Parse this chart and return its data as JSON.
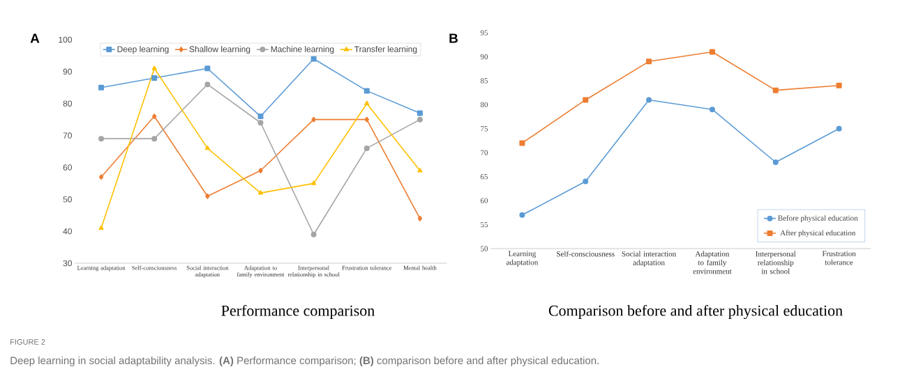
{
  "chart_data": [
    {
      "type": "line",
      "title": "Performance comparison",
      "categories": [
        "Learning adaptation",
        "Self-consciousness",
        "Social interaction adaptation",
        "Adaptation to family environment",
        "Interpersonal relationship in school",
        "Frustration tolerance",
        "Mental health"
      ],
      "series": [
        {
          "name": "Deep learning",
          "color": "#5b9bd5",
          "marker": "square",
          "values": [
            85,
            88,
            91,
            76,
            94,
            84,
            77
          ]
        },
        {
          "name": "Shallow learning",
          "color": "#ed7d31",
          "marker": "diamond",
          "values": [
            57,
            76,
            51,
            59,
            75,
            75,
            44
          ]
        },
        {
          "name": "Machine learning",
          "color": "#a5a5a5",
          "marker": "circle",
          "values": [
            69,
            69,
            86,
            74,
            39,
            66,
            75
          ]
        },
        {
          "name": "Transfer learning",
          "color": "#ffc000",
          "marker": "triangle",
          "values": [
            41,
            91,
            66,
            52,
            55,
            80,
            59
          ]
        }
      ],
      "ylim": [
        30,
        100
      ],
      "yticks": [
        30,
        40,
        50,
        60,
        70,
        80,
        90,
        100
      ],
      "legend": "top",
      "line_style": "solid",
      "annotations": [
        "A",
        "FIGURE 2",
        "Deep learning in social adaptability analysis. **(A)** Performance comparison; **(B)** comparison before and after physical education."
      ]
    },
    {
      "type": "line",
      "title": "Comparison before and after physical education",
      "categories": [
        "Learning adaptation",
        "Self-consciousness",
        "Social interaction adaptation",
        "Adaptation to family environment",
        "Interpersonal relationship in school",
        "Frustration tolerance"
      ],
      "series": [
        {
          "name": "Before physical education",
          "color": "#5b9bd5",
          "marker": "circle",
          "values": [
            57,
            64,
            81,
            79,
            68,
            75
          ]
        },
        {
          "name": "After physical education",
          "color": "#ed7d31",
          "marker": "square",
          "values": [
            72,
            81,
            89,
            91,
            83,
            84
          ]
        }
      ],
      "ylim": [
        50,
        95
      ],
      "yticks": [
        50,
        55,
        60,
        65,
        70,
        75,
        80,
        85,
        90,
        95
      ],
      "legend": "bottom right",
      "line_style": "solid",
      "annotations": [
        "B"
      ]
    }
  ]
}
